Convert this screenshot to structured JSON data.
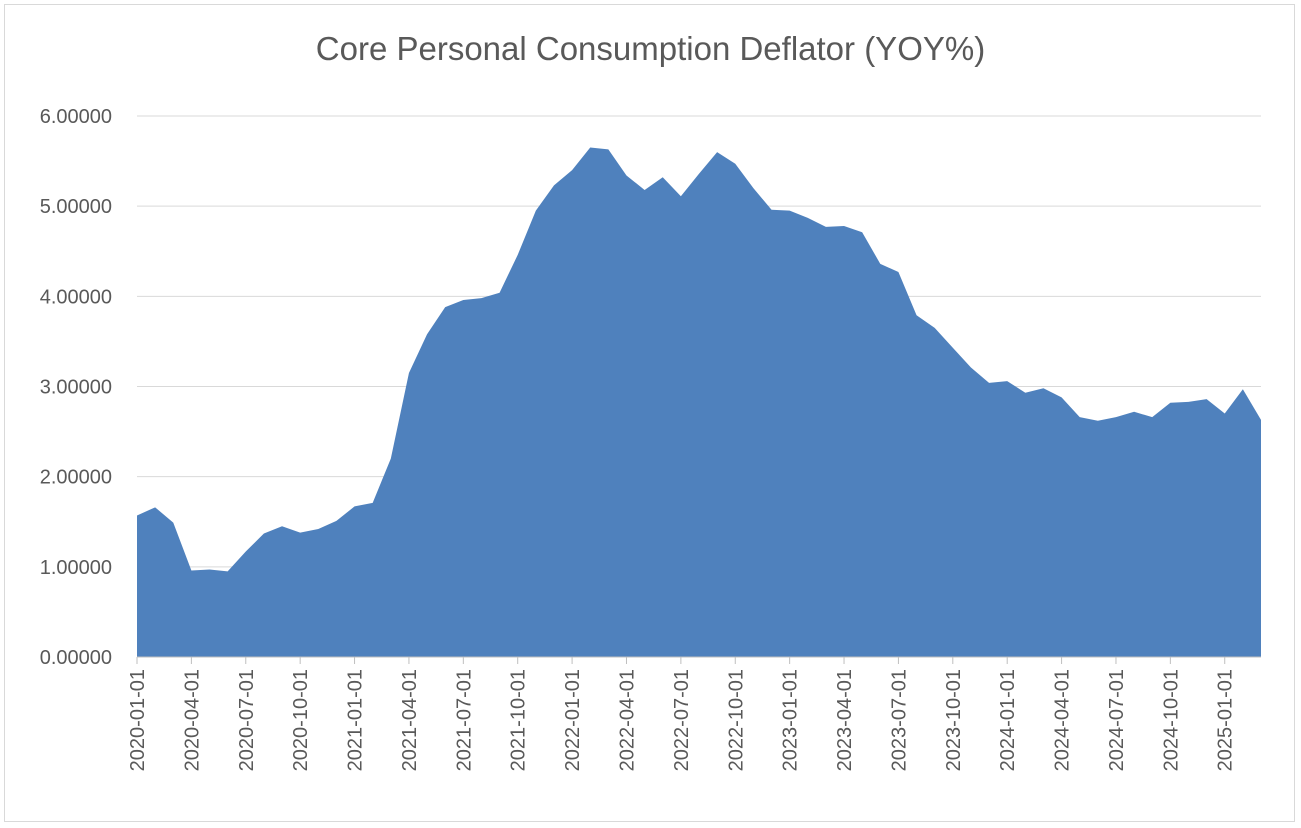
{
  "chart_data": {
    "type": "area",
    "title": "Core Personal Consumption Deflator (YOY%)",
    "xlabel": "",
    "ylabel": "",
    "ylim": [
      0,
      6
    ],
    "y_ticks": [
      "0.00000",
      "1.00000",
      "2.00000",
      "3.00000",
      "4.00000",
      "5.00000",
      "6.00000"
    ],
    "x_ticks": [
      "2020-01-01",
      "2020-04-01",
      "2020-07-01",
      "2020-10-01",
      "2021-01-01",
      "2021-04-01",
      "2021-07-01",
      "2021-10-01",
      "2022-01-01",
      "2022-04-01",
      "2022-07-01",
      "2022-10-01",
      "2023-01-01",
      "2023-04-01",
      "2023-07-01",
      "2023-10-01",
      "2024-01-01",
      "2024-04-01",
      "2024-07-01",
      "2024-10-01",
      "2025-01-01"
    ],
    "grid": true,
    "legend": "none",
    "color": "#4f81bd",
    "x_start": "2020-01-01",
    "frequency": "monthly",
    "values": [
      1.57,
      1.66,
      1.49,
      0.96,
      0.97,
      0.95,
      1.17,
      1.37,
      1.45,
      1.38,
      1.42,
      1.51,
      1.67,
      1.71,
      2.2,
      3.15,
      3.58,
      3.88,
      3.96,
      3.98,
      4.04,
      4.46,
      4.95,
      5.23,
      5.4,
      5.65,
      5.63,
      5.34,
      5.18,
      5.32,
      5.11,
      5.36,
      5.6,
      5.47,
      5.2,
      4.96,
      4.95,
      4.87,
      4.77,
      4.78,
      4.71,
      4.36,
      4.27,
      3.79,
      3.65,
      3.43,
      3.21,
      3.04,
      3.06,
      2.93,
      2.98,
      2.88,
      2.66,
      2.62,
      2.66,
      2.72,
      2.66,
      2.82,
      2.83,
      2.86,
      2.7,
      2.97,
      2.63
    ]
  }
}
